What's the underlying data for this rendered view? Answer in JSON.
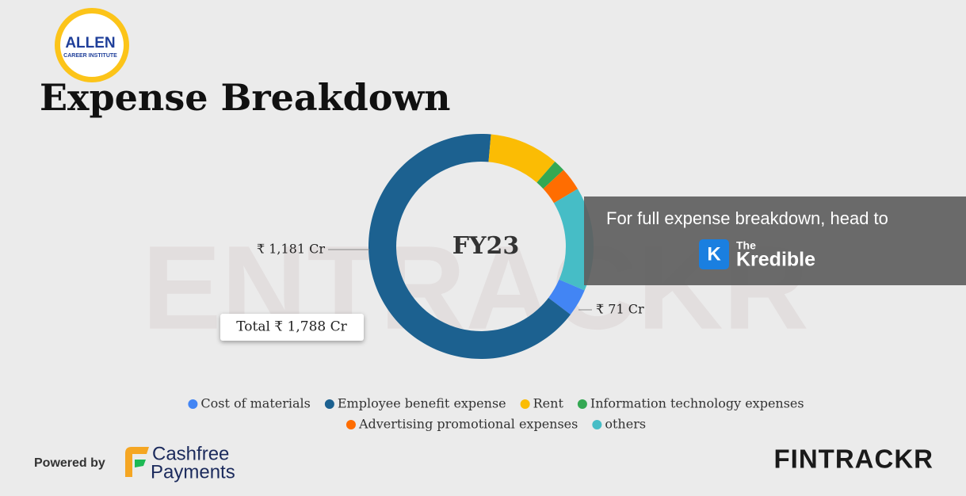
{
  "header": {
    "logo_title": "ALLEN",
    "logo_subtitle": "CAREER INSTITUTE",
    "watermark": "ENTRACKR"
  },
  "chart_data": {
    "type": "donut",
    "title": "Expense Breakdown",
    "center_label": "FY23",
    "total_label": "Total ₹ 1,788 Cr",
    "categories": [
      "Cost of materials",
      "Employee benefit expense",
      "Rent",
      "Information technology expenses",
      "Advertising promotional expenses",
      "others"
    ],
    "values": [
      71,
      1181,
      179,
      30,
      60,
      267
    ],
    "value_labels": [
      "₹ 71 Cr",
      "₹ 1,181 Cr",
      null,
      null,
      null,
      null
    ],
    "colors": [
      "#4285f4",
      "#1c6190",
      "#fbbc04",
      "#34a853",
      "#ff6d01",
      "#46bdc6"
    ]
  },
  "overlay": {
    "text": "For full expense breakdown, head to",
    "brand_small": "The",
    "brand": "Kredible",
    "icon": "K"
  },
  "footer": {
    "powered_by": "Powered by",
    "partner_line1": "Cashfree",
    "partner_line2": "Payments",
    "brand": "FINTRACKR"
  }
}
